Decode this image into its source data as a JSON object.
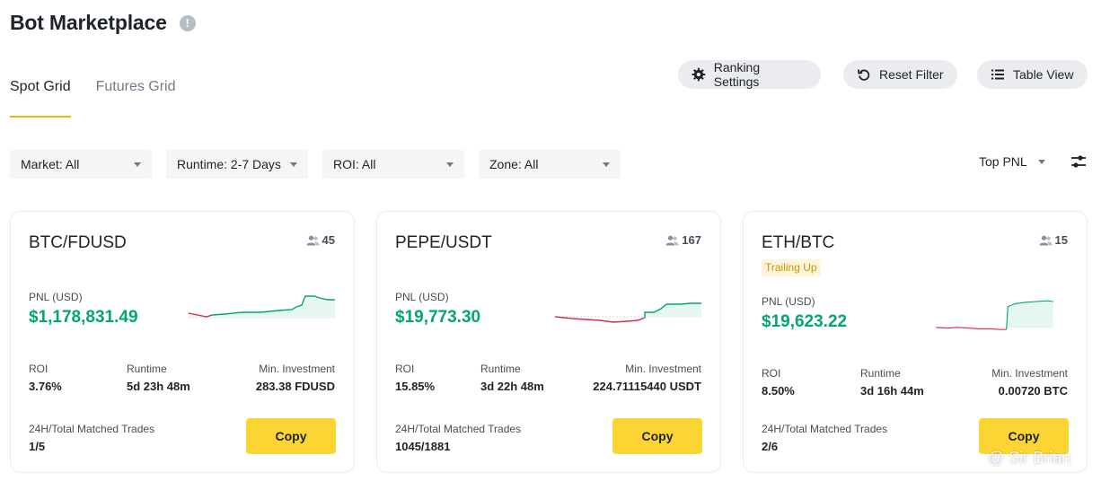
{
  "header": {
    "title": "Bot Marketplace",
    "info_icon": "info-icon"
  },
  "tabs": [
    {
      "label": "Spot Grid",
      "active": true
    },
    {
      "label": "Futures Grid",
      "active": false
    }
  ],
  "actions": {
    "ranking_settings": "Ranking Settings",
    "reset_filter": "Reset Filter",
    "table_view": "Table View"
  },
  "filters": {
    "market": "Market: All",
    "runtime": "Runtime: 2-7 Days",
    "roi": "ROI: All",
    "zone": "Zone: All",
    "sort": "Top PNL"
  },
  "colors": {
    "accent": "#f0b90b",
    "copy_button": "#fcd535",
    "profit": "#03a66d",
    "loss": "#cf304a"
  },
  "cards": [
    {
      "pair": "BTC/FDUSD",
      "users": "45",
      "badge": "",
      "pnl_label": "PNL (USD)",
      "pnl": "$1,178,831.49",
      "roi_label": "ROI",
      "roi": "3.76%",
      "runtime_label": "Runtime",
      "runtime": "5d 23h 48m",
      "min_inv_label": "Min. Investment",
      "min_inv": "283.38 FDUSD",
      "trades_label": "24H/Total Matched Trades",
      "trades": "1/5",
      "copy": "Copy"
    },
    {
      "pair": "PEPE/USDT",
      "users": "167",
      "badge": "",
      "pnl_label": "PNL (USD)",
      "pnl": "$19,773.30",
      "roi_label": "ROI",
      "roi": "15.85%",
      "runtime_label": "Runtime",
      "runtime": "3d 22h 48m",
      "min_inv_label": "Min. Investment",
      "min_inv": "224.71115440 USDT",
      "trades_label": "24H/Total Matched Trades",
      "trades": "1045/1881",
      "copy": "Copy"
    },
    {
      "pair": "ETH/BTC",
      "users": "15",
      "badge": "Trailing Up",
      "pnl_label": "PNL (USD)",
      "pnl": "$19,623.22",
      "roi_label": "ROI",
      "roi": "8.50%",
      "runtime_label": "Runtime",
      "runtime": "3d 16h 44m",
      "min_inv_label": "Min. Investment",
      "min_inv": "0.00720 BTC",
      "trades_label": "24H/Total Matched Trades",
      "trades": "2/6",
      "copy": "Copy"
    }
  ],
  "watermark": "@ Sir Brian"
}
